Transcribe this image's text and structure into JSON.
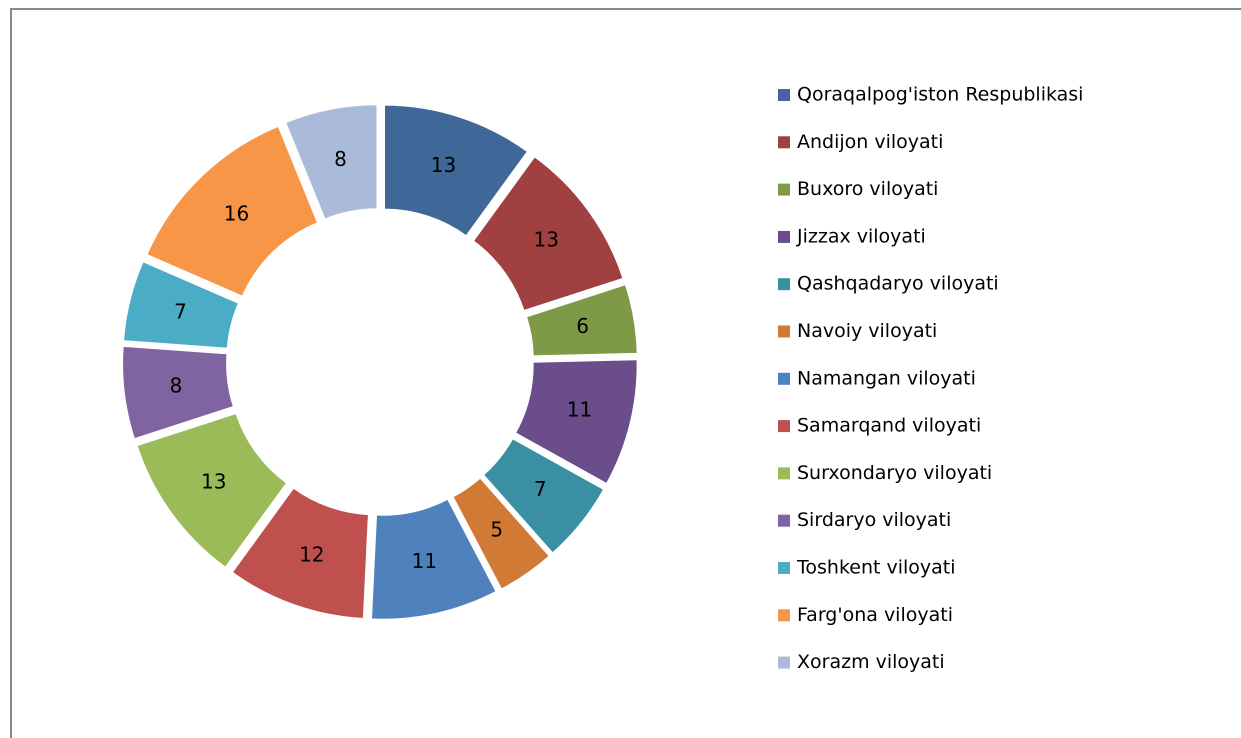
{
  "chart_data": {
    "type": "donut",
    "categories": [
      "Qoraqalpog'iston Respublikasi",
      "Andijon viloyati",
      "Buxoro viloyati",
      "Jizzax viloyati",
      "Qashqadaryo viloyati",
      "Navoiy viloyati",
      "Namangan viloyati",
      "Samarqand viloyati",
      "Surxondaryo viloyati",
      "Sirdaryo viloyati",
      "Toshkent viloyati",
      "Farg'ona viloyati",
      "Xorazm viloyati"
    ],
    "values": [
      13,
      13,
      6,
      11,
      7,
      5,
      11,
      12,
      13,
      8,
      7,
      16,
      8
    ],
    "colors": [
      "#3f6797",
      "#a04040",
      "#7e9a46",
      "#6a4d8a",
      "#3a8fa3",
      "#d07a35",
      "#4f81bd",
      "#c0504d",
      "#9bbb59",
      "#8064a2",
      "#4bacc6",
      "#f79646",
      "#a9bbd9"
    ],
    "legend": "right"
  }
}
